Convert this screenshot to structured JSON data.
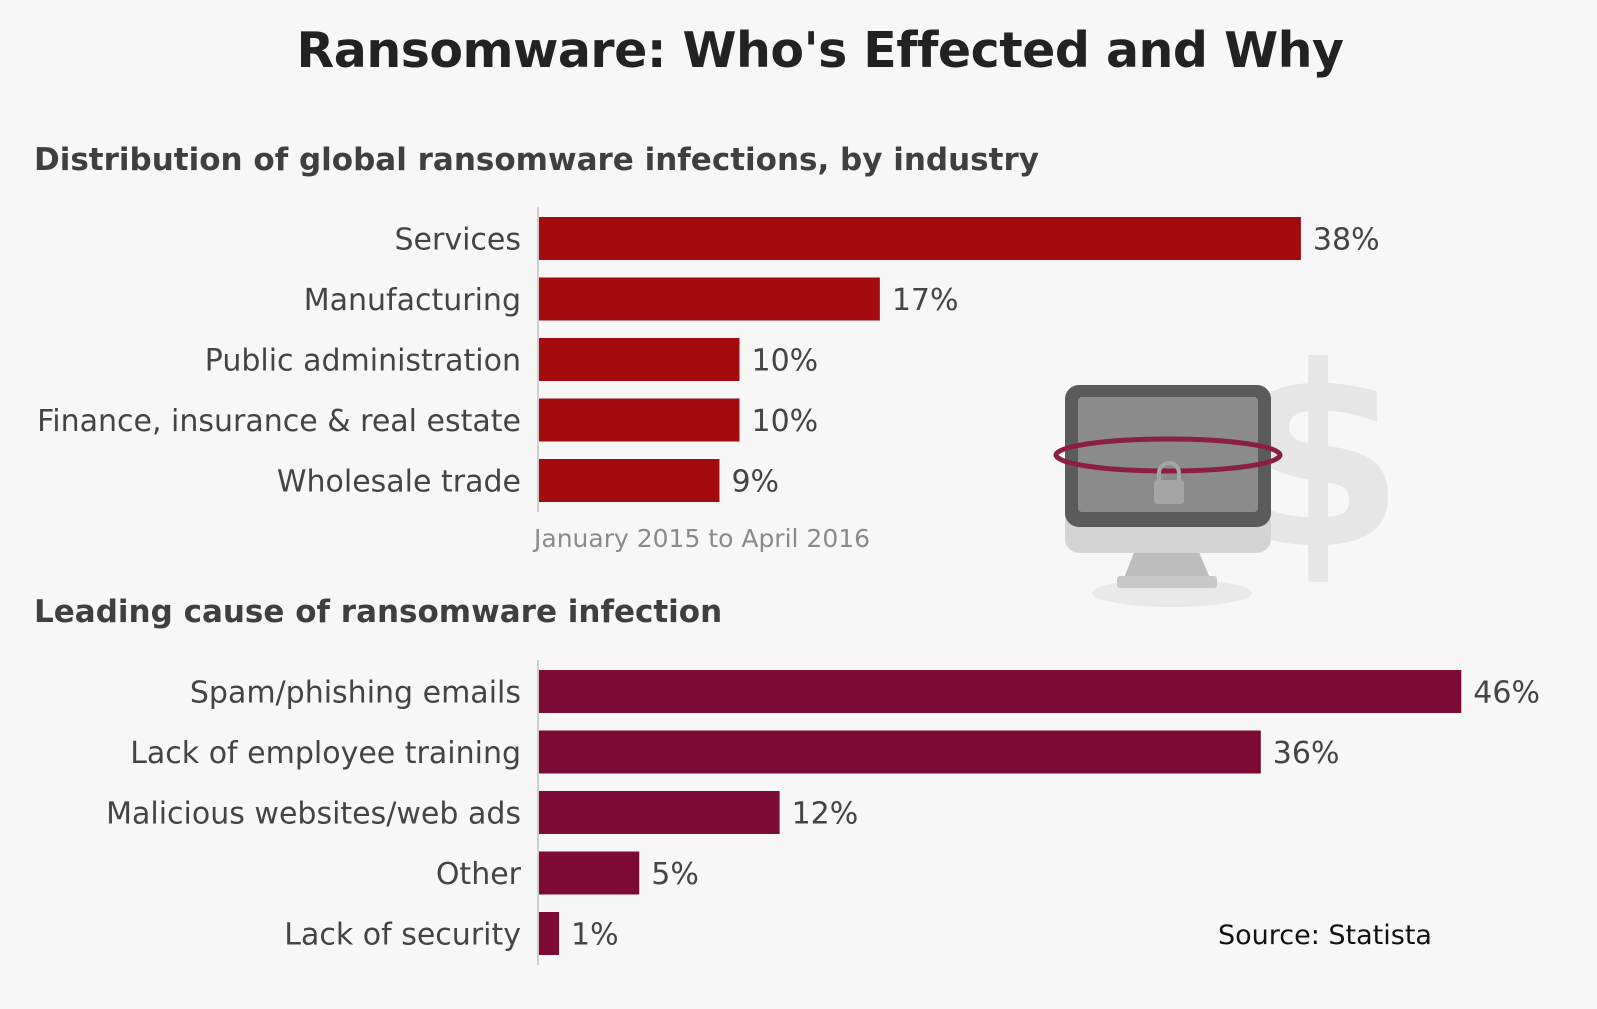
{
  "title": "Ransomware: Who's Effected and Why",
  "source": "Source: Statista",
  "colors": {
    "industry_bar": "#a30b0e",
    "cause_bar": "#7c0a35",
    "background": "#f7f7f7"
  },
  "icon": "locked-computer-dollar-icon",
  "chart_data": [
    {
      "type": "bar",
      "orientation": "horizontal",
      "title": "Distribution of global ransomware infections, by industry",
      "note": "January 2015 to April 2016",
      "categories": [
        "Services",
        "Manufacturing",
        "Public administration",
        "Finance, insurance & real estate",
        "Wholesale trade"
      ],
      "values": [
        38,
        17,
        10,
        10,
        9
      ],
      "value_labels": [
        "38%",
        "17%",
        "10%",
        "10%",
        "9%"
      ],
      "unit": "%"
    },
    {
      "type": "bar",
      "orientation": "horizontal",
      "title": "Leading cause of ransomware infection",
      "categories": [
        "Spam/phishing emails",
        "Lack of employee training",
        "Malicious websites/web ads",
        "Other",
        "Lack of security"
      ],
      "values": [
        46,
        36,
        12,
        5,
        1
      ],
      "value_labels": [
        "46%",
        "36%",
        "12%",
        "5%",
        "1%"
      ],
      "unit": "%"
    }
  ]
}
